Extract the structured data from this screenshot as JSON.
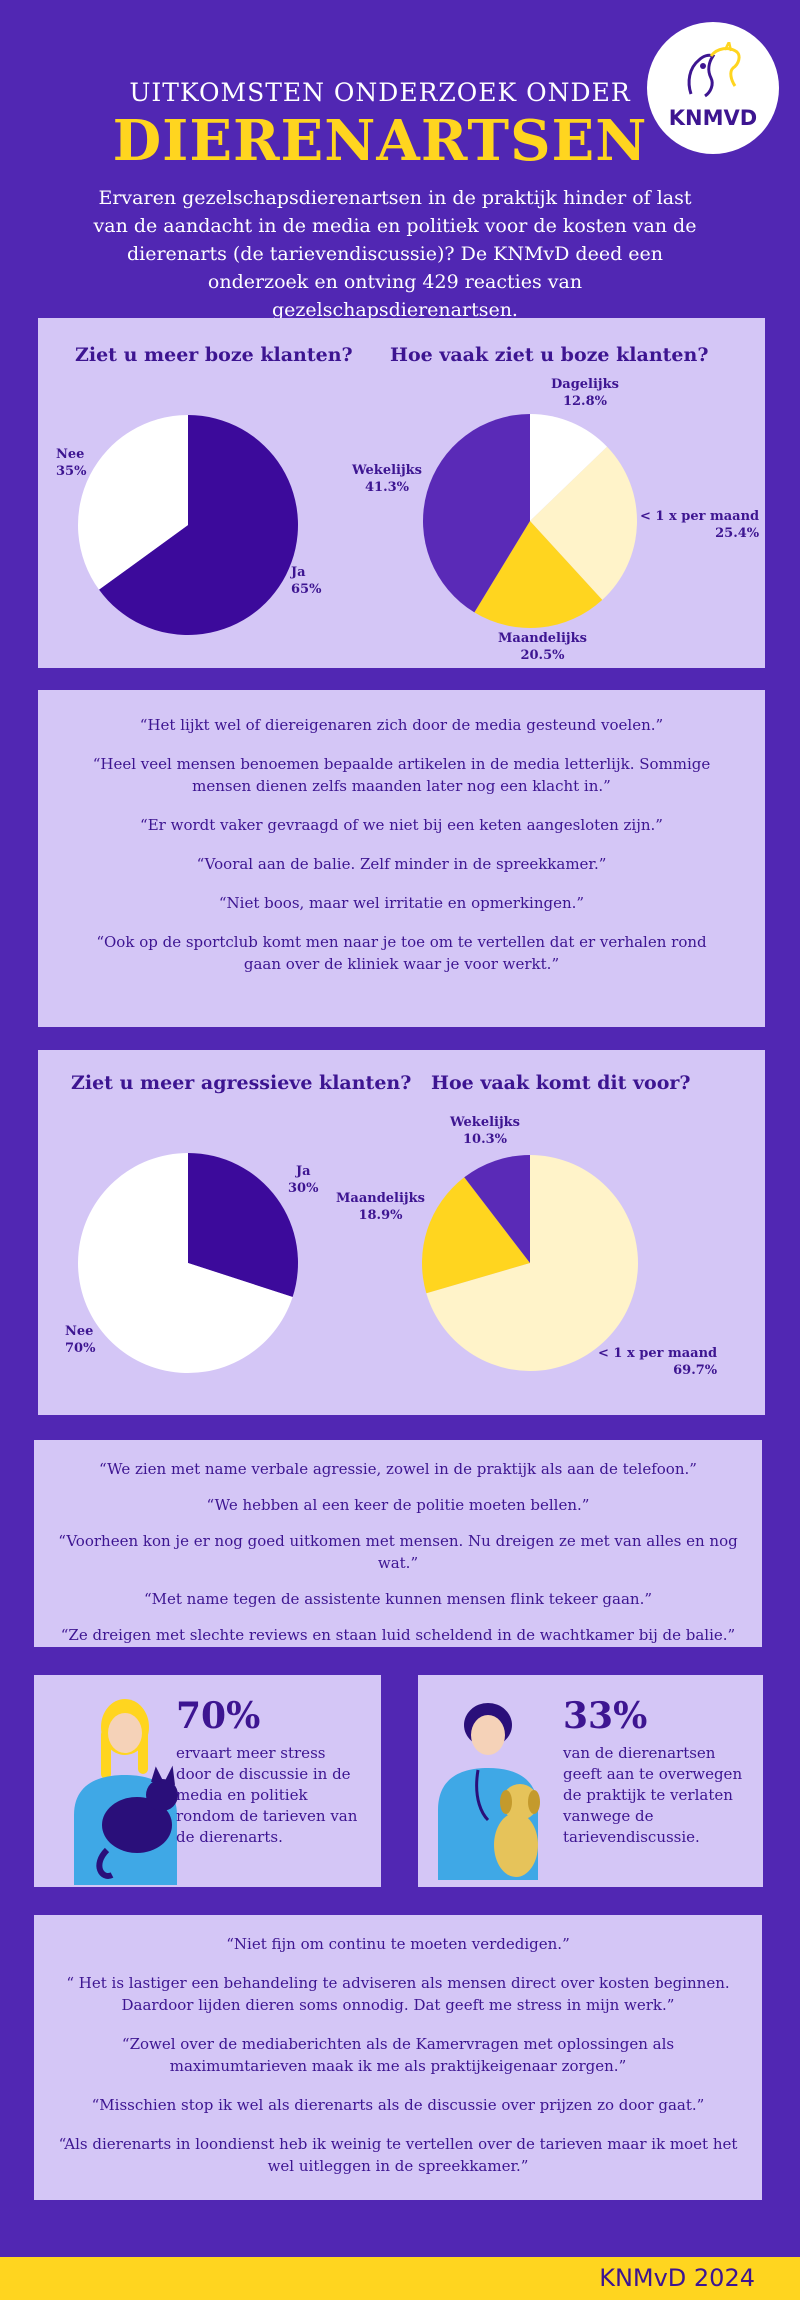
{
  "header": {
    "title_line1": "UITKOMSTEN ONDERZOEK ONDER",
    "title_line2": "DIERENARTSEN",
    "intro": "Ervaren gezelschapsdierenartsen in de praktijk hinder of last van de aandacht in de media en politiek voor de kosten van de dierenarts (de tarievendiscussie)? De KNMvD deed een onderzoek en ontving 429 reacties van gezelschapsdierenartsen.",
    "logo_text": "KNMVD"
  },
  "colors": {
    "background": "#5127b3",
    "panel": "#d4c6f6",
    "yellow": "#ffd51f",
    "dark_purple": "#3c0a9b",
    "mid_purple": "#5a2ab7",
    "cream": "#fff3c9",
    "white": "#ffffff"
  },
  "chart_data": [
    {
      "type": "pie",
      "title": "Ziet u meer boze klanten?",
      "slices": [
        {
          "label": "Ja",
          "value": 65,
          "display": "65%",
          "color": "#3c0a9b"
        },
        {
          "label": "Nee",
          "value": 35,
          "display": "35%",
          "color": "#ffffff"
        }
      ]
    },
    {
      "type": "pie",
      "title": "Hoe vaak ziet u boze klanten?",
      "slices": [
        {
          "label": "Dagelijks",
          "value": 12.8,
          "display": "12.8%",
          "color": "#ffffff"
        },
        {
          "label": "< 1 x per maand",
          "value": 25.4,
          "display": "25.4%",
          "color": "#fff3c9"
        },
        {
          "label": "Maandelijks",
          "value": 20.5,
          "display": "20.5%",
          "color": "#ffd51f"
        },
        {
          "label": "Wekelijks",
          "value": 41.3,
          "display": "41.3%",
          "color": "#5a2ab7"
        }
      ]
    },
    {
      "type": "pie",
      "title": "Ziet u meer agressieve klanten?",
      "slices": [
        {
          "label": "Ja",
          "value": 30,
          "display": "30%",
          "color": "#3c0a9b"
        },
        {
          "label": "Nee",
          "value": 70,
          "display": "70%",
          "color": "#ffffff"
        }
      ]
    },
    {
      "type": "pie",
      "title": "Hoe vaak komt dit voor?",
      "slices": [
        {
          "label": "< 1 x per maand",
          "value": 69.7,
          "display": "69.7%",
          "color": "#fff3c9"
        },
        {
          "label": "Maandelijks",
          "value": 18.9,
          "display": "18.9%",
          "color": "#ffd51f"
        },
        {
          "label": "Wekelijks",
          "value": 10.3,
          "display": "10.3%",
          "color": "#5a2ab7"
        }
      ]
    }
  ],
  "quotes_1": [
    "“Het lijkt wel of dierеigenaren zich door de media gesteund voelen.”",
    "“Heel veel mensen benoemen bepaalde artikelen in de media letterlijk. Sommige mensen dienen zelfs maanden later nog een klacht in.”",
    "“Er wordt vaker gevraagd of we niet bij een keten aangesloten zijn.”",
    "“Vooral aan de balie. Zelf minder in de spreekkamer.”",
    "“Niet boos, maar wel irritatie en opmerkingen.”",
    "“Ook op de sportclub komt men naar je toe om te vertellen dat er verhalen rond gaan over de kliniek waar je voor werkt.”"
  ],
  "quotes_2": [
    "“We zien met name verbale agressie, zowel in de praktijk als aan de telefoon.”",
    "“We hebben al een keer de politie moeten bellen.”",
    "“Voorheen kon je er nog goed uitkomen met mensen. Nu dreigen ze met van alles en nog wat.”",
    "“Met name tegen de assistente kunnen mensen flink tekeer gaan.”",
    "“Ze dreigen met slechte reviews en staan luid scheldend in de wachtkamer bij de balie.”"
  ],
  "stats": [
    {
      "percent": "70%",
      "text": "ervaart meer stress door de discussie in de media en politiek rondom de tarieven van de dierenarts."
    },
    {
      "percent": "33%",
      "text": "van de dierenartsen geeft aan te overwegen de praktijk te verlaten vanwege de tarievendiscussie."
    }
  ],
  "quotes_3": [
    "“Niet fijn om continu te moeten verdedigen.”",
    "“ Het is lastiger een behandeling te adviseren als mensen direct over kosten beginnen. Daardoor lijden dieren soms onnodig. Dat geeft me stress in mijn werk.”",
    "“Zowel over de mediaberichten als de Kamervragen met oplossingen als maximumtarieven maak ik me als praktijkeigenaar zorgen.”",
    "“Misschien stop ik wel als dierenarts als de discussie over prijzen zo door gaat.”",
    "“Als dierenarts in loondienst heb ik weinig te vertellen over de tarieven maar ik moet het wel uitleggen in de spreekkamer.”"
  ],
  "footer": {
    "text": "KNMvD 2024"
  }
}
